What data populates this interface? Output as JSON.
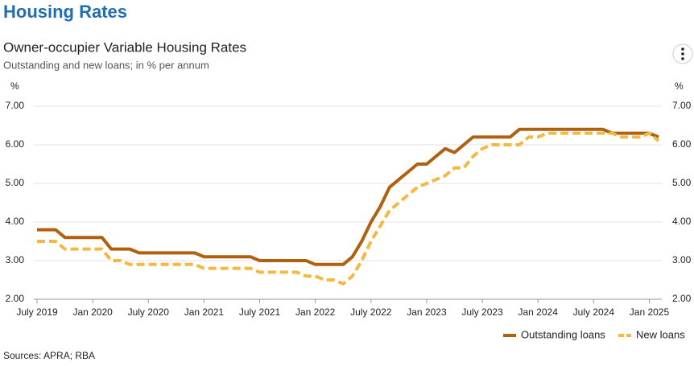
{
  "header": {
    "title": "Housing Rates"
  },
  "chart_data": {
    "type": "line",
    "title": "Owner-occupier Variable Housing Rates",
    "subtitle": "Outstanding and new loans; in % per annum",
    "ylabel": "%",
    "x": [
      "2019-07",
      "2019-08",
      "2019-09",
      "2019-10",
      "2019-11",
      "2019-12",
      "2020-01",
      "2020-02",
      "2020-03",
      "2020-04",
      "2020-05",
      "2020-06",
      "2020-07",
      "2020-08",
      "2020-09",
      "2020-10",
      "2020-11",
      "2020-12",
      "2021-01",
      "2021-02",
      "2021-03",
      "2021-04",
      "2021-05",
      "2021-06",
      "2021-07",
      "2021-08",
      "2021-09",
      "2021-10",
      "2021-11",
      "2021-12",
      "2022-01",
      "2022-02",
      "2022-03",
      "2022-04",
      "2022-05",
      "2022-06",
      "2022-07",
      "2022-08",
      "2022-09",
      "2022-10",
      "2022-11",
      "2022-12",
      "2023-01",
      "2023-02",
      "2023-03",
      "2023-04",
      "2023-05",
      "2023-06",
      "2023-07",
      "2023-08",
      "2023-09",
      "2023-10",
      "2023-11",
      "2023-12",
      "2024-01",
      "2024-02",
      "2024-03",
      "2024-04",
      "2024-05",
      "2024-06",
      "2024-07",
      "2024-08",
      "2024-09",
      "2024-10",
      "2024-11",
      "2024-12",
      "2025-01",
      "2025-02"
    ],
    "xticks": [
      {
        "value": "2019-07",
        "label": "July 2019"
      },
      {
        "value": "2020-01",
        "label": "Jan 2020"
      },
      {
        "value": "2020-07",
        "label": "July 2020"
      },
      {
        "value": "2021-01",
        "label": "Jan 2021"
      },
      {
        "value": "2021-07",
        "label": "July 2021"
      },
      {
        "value": "2022-01",
        "label": "Jan 2022"
      },
      {
        "value": "2022-07",
        "label": "July 2022"
      },
      {
        "value": "2023-01",
        "label": "Jan 2023"
      },
      {
        "value": "2023-07",
        "label": "July 2023"
      },
      {
        "value": "2024-01",
        "label": "Jan 2024"
      },
      {
        "value": "2024-07",
        "label": "July 2024"
      },
      {
        "value": "2025-01",
        "label": "Jan 2025"
      }
    ],
    "ylim": [
      2,
      7
    ],
    "yticks": [
      {
        "value": 2,
        "label": "2.00"
      },
      {
        "value": 3,
        "label": "3.00"
      },
      {
        "value": 4,
        "label": "4.00"
      },
      {
        "value": 5,
        "label": "5.00"
      },
      {
        "value": 6,
        "label": "6.00"
      },
      {
        "value": 7,
        "label": "7.00"
      }
    ],
    "grid": true,
    "legend": "bottom-right",
    "series": [
      {
        "name": "Outstanding loans",
        "color": "#b0600f",
        "dash": false,
        "values": [
          3.8,
          3.8,
          3.8,
          3.6,
          3.6,
          3.6,
          3.6,
          3.6,
          3.3,
          3.3,
          3.3,
          3.2,
          3.2,
          3.2,
          3.2,
          3.2,
          3.2,
          3.2,
          3.1,
          3.1,
          3.1,
          3.1,
          3.1,
          3.1,
          3.0,
          3.0,
          3.0,
          3.0,
          3.0,
          3.0,
          2.9,
          2.9,
          2.9,
          2.9,
          3.1,
          3.5,
          4.0,
          4.4,
          4.9,
          5.1,
          5.3,
          5.5,
          5.5,
          5.7,
          5.9,
          5.8,
          6.0,
          6.2,
          6.2,
          6.2,
          6.2,
          6.2,
          6.4,
          6.4,
          6.4,
          6.4,
          6.4,
          6.4,
          6.4,
          6.4,
          6.4,
          6.4,
          6.3,
          6.3,
          6.3,
          6.3,
          6.3,
          6.2
        ]
      },
      {
        "name": "New loans",
        "color": "#f5b942",
        "dash": true,
        "values": [
          3.5,
          3.5,
          3.5,
          3.3,
          3.3,
          3.3,
          3.3,
          3.3,
          3.0,
          3.0,
          2.9,
          2.9,
          2.9,
          2.9,
          2.9,
          2.9,
          2.9,
          2.9,
          2.8,
          2.8,
          2.8,
          2.8,
          2.8,
          2.8,
          2.7,
          2.7,
          2.7,
          2.7,
          2.7,
          2.6,
          2.6,
          2.5,
          2.5,
          2.4,
          2.6,
          3.0,
          3.5,
          3.9,
          4.3,
          4.5,
          4.7,
          4.9,
          5.0,
          5.1,
          5.2,
          5.4,
          5.4,
          5.7,
          5.9,
          6.0,
          6.0,
          6.0,
          6.0,
          6.2,
          6.2,
          6.3,
          6.3,
          6.3,
          6.3,
          6.3,
          6.3,
          6.3,
          6.3,
          6.2,
          6.2,
          6.2,
          6.3,
          6.1
        ]
      }
    ]
  },
  "footer": {
    "source": "Sources: APRA; RBA"
  }
}
